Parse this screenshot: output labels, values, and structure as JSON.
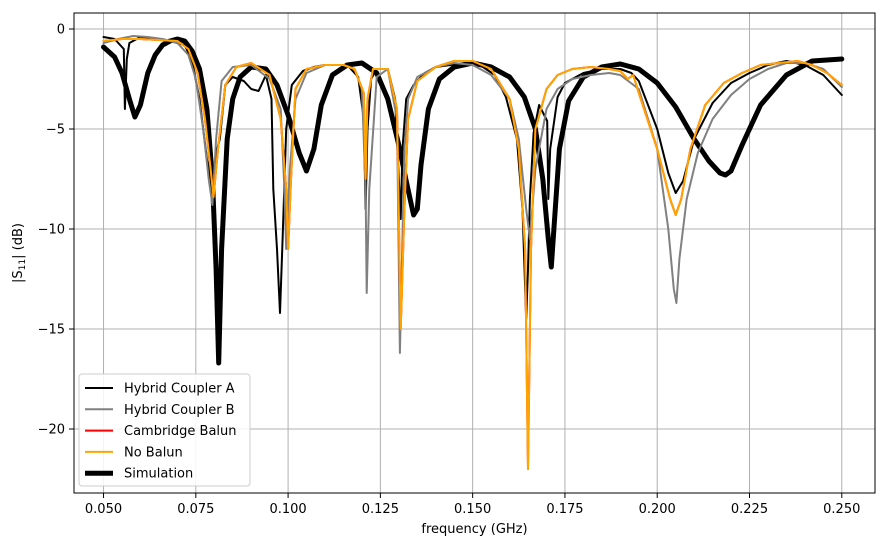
{
  "chart_data": {
    "type": "line",
    "xlabel": "frequency (GHz)",
    "ylabel": "|S",
    "ylabel_sub": "11",
    "ylabel_suffix": "| (dB)",
    "xlim": [
      0.042,
      0.259
    ],
    "ylim": [
      -23.2,
      0.8
    ],
    "xticks": [
      0.05,
      0.075,
      0.1,
      0.125,
      0.15,
      0.175,
      0.2,
      0.225,
      0.25
    ],
    "xtick_labels": [
      "0.050",
      "0.075",
      "0.100",
      "0.125",
      "0.150",
      "0.175",
      "0.200",
      "0.225",
      "0.250"
    ],
    "yticks": [
      0,
      -5,
      -10,
      -15,
      -20
    ],
    "ytick_labels": [
      "0",
      "−5",
      "−10",
      "−15",
      "−20"
    ],
    "grid": true,
    "legend_position": "lower-left",
    "series": [
      {
        "name": "Hybrid Coupler A",
        "color": "#000000",
        "width": 2,
        "x": [
          0.05,
          0.053,
          0.0555,
          0.0558,
          0.0563,
          0.057,
          0.06,
          0.064,
          0.068,
          0.072,
          0.074,
          0.076,
          0.078,
          0.0795,
          0.0805,
          0.0815,
          0.083,
          0.085,
          0.088,
          0.09,
          0.092,
          0.094,
          0.0955,
          0.096,
          0.097,
          0.0978,
          0.0985,
          0.0995,
          0.101,
          0.104,
          0.107,
          0.11,
          0.113,
          0.116,
          0.119,
          0.1205,
          0.121,
          0.1215,
          0.1225,
          0.124,
          0.127,
          0.129,
          0.1305,
          0.131,
          0.132,
          0.134,
          0.137,
          0.14,
          0.144,
          0.148,
          0.152,
          0.156,
          0.159,
          0.162,
          0.1635,
          0.1645,
          0.165,
          0.1655,
          0.1665,
          0.168,
          0.1702,
          0.1705,
          0.171,
          0.173,
          0.175,
          0.18,
          0.185,
          0.19,
          0.193,
          0.195,
          0.2,
          0.203,
          0.205,
          0.207,
          0.21,
          0.215,
          0.22,
          0.225,
          0.23,
          0.235,
          0.24,
          0.245,
          0.25
        ],
        "y": [
          -0.4,
          -0.5,
          -1.0,
          -4.0,
          -1.5,
          -0.7,
          -0.4,
          -0.5,
          -0.6,
          -0.8,
          -1.6,
          -3.5,
          -6.5,
          -8.0,
          -6.2,
          -5.5,
          -2.8,
          -2.4,
          -2.6,
          -3.0,
          -3.1,
          -2.3,
          -3.5,
          -8.0,
          -11.0,
          -14.2,
          -10.5,
          -5.0,
          -2.8,
          -2.1,
          -1.9,
          -1.8,
          -1.8,
          -1.8,
          -2.4,
          -4.5,
          -9.0,
          -5.0,
          -2.5,
          -2.0,
          -2.0,
          -3.5,
          -9.5,
          -6.0,
          -3.5,
          -2.8,
          -2.2,
          -1.9,
          -1.8,
          -1.7,
          -1.8,
          -2.3,
          -3.4,
          -5.5,
          -9.0,
          -14.5,
          -12.0,
          -8.5,
          -5.2,
          -3.8,
          -4.6,
          -8.5,
          -6.0,
          -3.4,
          -2.7,
          -2.2,
          -2.0,
          -2.0,
          -2.2,
          -2.6,
          -5.0,
          -7.2,
          -8.2,
          -7.6,
          -5.5,
          -3.7,
          -2.7,
          -2.2,
          -1.8,
          -1.6,
          -1.8,
          -2.3,
          -3.3
        ]
      },
      {
        "name": "Hybrid Coupler B",
        "color": "#808080",
        "width": 2,
        "x": [
          0.05,
          0.054,
          0.058,
          0.062,
          0.066,
          0.07,
          0.073,
          0.075,
          0.077,
          0.0785,
          0.0795,
          0.0805,
          0.082,
          0.085,
          0.09,
          0.095,
          0.098,
          0.099,
          0.0995,
          0.1005,
          0.102,
          0.105,
          0.11,
          0.115,
          0.118,
          0.12,
          0.121,
          0.1213,
          0.122,
          0.124,
          0.127,
          0.1295,
          0.1303,
          0.1308,
          0.1315,
          0.1325,
          0.135,
          0.14,
          0.145,
          0.15,
          0.155,
          0.16,
          0.1625,
          0.1645,
          0.1655,
          0.167,
          0.17,
          0.173,
          0.177,
          0.182,
          0.187,
          0.19,
          0.195,
          0.2,
          0.203,
          0.2045,
          0.2052,
          0.206,
          0.208,
          0.211,
          0.215,
          0.22,
          0.225,
          0.23,
          0.235,
          0.24,
          0.245,
          0.25
        ],
        "y": [
          -0.7,
          -0.5,
          -0.35,
          -0.4,
          -0.5,
          -0.7,
          -1.3,
          -2.5,
          -5.0,
          -7.5,
          -8.8,
          -5.5,
          -2.6,
          -1.9,
          -1.8,
          -2.5,
          -4.0,
          -8.0,
          -11.0,
          -7.0,
          -3.5,
          -2.2,
          -1.8,
          -1.8,
          -2.0,
          -3.0,
          -8.0,
          -13.2,
          -8.0,
          -2.4,
          -2.0,
          -4.5,
          -16.2,
          -12.0,
          -6.0,
          -3.5,
          -2.4,
          -1.9,
          -1.7,
          -1.8,
          -2.3,
          -3.5,
          -5.5,
          -9.0,
          -10.5,
          -7.0,
          -4.0,
          -3.0,
          -2.5,
          -2.3,
          -2.2,
          -2.3,
          -3.0,
          -6.0,
          -10.0,
          -13.0,
          -13.7,
          -11.5,
          -8.5,
          -6.2,
          -4.5,
          -3.3,
          -2.5,
          -2.0,
          -1.7,
          -1.7,
          -2.0,
          -2.9
        ]
      },
      {
        "name": "Cambridge Balun",
        "color": "#ff0000",
        "width": 2,
        "x": [
          0.05,
          0.055,
          0.06,
          0.065,
          0.07,
          0.073,
          0.0755,
          0.0775,
          0.079,
          0.0798,
          0.081,
          0.083,
          0.086,
          0.09,
          0.095,
          0.098,
          0.0995,
          0.1,
          0.1008,
          0.102,
          0.105,
          0.11,
          0.115,
          0.118,
          0.1205,
          0.121,
          0.1215,
          0.123,
          0.127,
          0.1295,
          0.1305,
          0.1315,
          0.1325,
          0.135,
          0.14,
          0.145,
          0.15,
          0.155,
          0.16,
          0.1625,
          0.1642,
          0.165,
          0.1658,
          0.167,
          0.17,
          0.173,
          0.177,
          0.182,
          0.187,
          0.19,
          0.192,
          0.1935,
          0.195,
          0.2,
          0.2035,
          0.205,
          0.2065,
          0.209,
          0.213,
          0.218,
          0.223,
          0.228,
          0.233,
          0.238,
          0.242,
          0.246,
          0.25
        ],
        "y": [
          -0.6,
          -0.5,
          -0.5,
          -0.55,
          -0.6,
          -1.0,
          -2.2,
          -4.5,
          -7.0,
          -8.4,
          -6.0,
          -2.8,
          -1.9,
          -1.7,
          -2.3,
          -4.5,
          -8.0,
          -11.0,
          -7.5,
          -3.0,
          -2.0,
          -1.8,
          -1.8,
          -2.0,
          -3.2,
          -7.5,
          -3.5,
          -2.0,
          -2.0,
          -4.0,
          -15.0,
          -9.0,
          -4.5,
          -2.6,
          -1.9,
          -1.6,
          -1.6,
          -2.0,
          -3.5,
          -6.0,
          -11.0,
          -22.0,
          -11.0,
          -5.0,
          -3.0,
          -2.3,
          -2.0,
          -1.9,
          -2.0,
          -2.1,
          -2.5,
          -2.3,
          -3.2,
          -6.0,
          -8.5,
          -9.3,
          -8.5,
          -6.0,
          -3.8,
          -2.7,
          -2.2,
          -1.8,
          -1.7,
          -1.6,
          -1.8,
          -2.2,
          -2.8
        ]
      },
      {
        "name": "No Balun",
        "color": "#ffa500",
        "width": 2,
        "x": [
          0.05,
          0.055,
          0.06,
          0.065,
          0.07,
          0.073,
          0.0755,
          0.0775,
          0.079,
          0.0798,
          0.081,
          0.083,
          0.086,
          0.09,
          0.095,
          0.098,
          0.0995,
          0.1,
          0.1008,
          0.102,
          0.105,
          0.11,
          0.115,
          0.118,
          0.1205,
          0.121,
          0.1215,
          0.123,
          0.127,
          0.1295,
          0.1305,
          0.1315,
          0.1325,
          0.135,
          0.14,
          0.145,
          0.15,
          0.155,
          0.16,
          0.1625,
          0.1642,
          0.165,
          0.1658,
          0.167,
          0.17,
          0.173,
          0.177,
          0.182,
          0.187,
          0.19,
          0.192,
          0.1935,
          0.195,
          0.2,
          0.2035,
          0.205,
          0.2065,
          0.209,
          0.213,
          0.218,
          0.223,
          0.228,
          0.233,
          0.238,
          0.242,
          0.246,
          0.25
        ],
        "y": [
          -0.6,
          -0.5,
          -0.5,
          -0.55,
          -0.6,
          -1.0,
          -2.2,
          -4.5,
          -7.0,
          -8.4,
          -6.0,
          -2.8,
          -1.9,
          -1.7,
          -2.3,
          -4.5,
          -8.0,
          -11.0,
          -7.5,
          -3.0,
          -2.0,
          -1.8,
          -1.8,
          -2.0,
          -3.2,
          -7.5,
          -3.5,
          -2.0,
          -2.0,
          -4.0,
          -15.0,
          -9.0,
          -4.5,
          -2.6,
          -1.9,
          -1.6,
          -1.6,
          -2.0,
          -3.5,
          -6.0,
          -11.0,
          -22.0,
          -11.0,
          -5.0,
          -3.0,
          -2.3,
          -2.0,
          -1.9,
          -2.0,
          -2.1,
          -2.5,
          -2.3,
          -3.2,
          -6.0,
          -8.5,
          -9.3,
          -8.5,
          -6.0,
          -3.8,
          -2.7,
          -2.2,
          -1.8,
          -1.7,
          -1.6,
          -1.8,
          -2.2,
          -2.8
        ]
      },
      {
        "name": "Simulation",
        "color": "#000000",
        "width": 5,
        "x": [
          0.05,
          0.053,
          0.055,
          0.057,
          0.0585,
          0.06,
          0.062,
          0.064,
          0.066,
          0.068,
          0.07,
          0.072,
          0.074,
          0.076,
          0.078,
          0.0795,
          0.0805,
          0.0812,
          0.082,
          0.0835,
          0.085,
          0.087,
          0.09,
          0.094,
          0.097,
          0.1,
          0.103,
          0.105,
          0.107,
          0.109,
          0.112,
          0.116,
          0.12,
          0.124,
          0.127,
          0.13,
          0.132,
          0.134,
          0.135,
          0.136,
          0.138,
          0.141,
          0.145,
          0.15,
          0.155,
          0.16,
          0.164,
          0.167,
          0.169,
          0.1705,
          0.1713,
          0.172,
          0.1735,
          0.176,
          0.18,
          0.185,
          0.19,
          0.195,
          0.2,
          0.205,
          0.21,
          0.214,
          0.217,
          0.2185,
          0.22,
          0.223,
          0.228,
          0.235,
          0.242,
          0.25
        ],
        "y": [
          -0.9,
          -1.4,
          -2.2,
          -3.5,
          -4.4,
          -3.8,
          -2.2,
          -1.3,
          -0.8,
          -0.6,
          -0.5,
          -0.6,
          -1.1,
          -2.0,
          -4.0,
          -7.5,
          -12.0,
          -16.7,
          -11.0,
          -5.5,
          -3.5,
          -2.4,
          -1.9,
          -2.0,
          -2.8,
          -4.3,
          -6.2,
          -7.1,
          -6.0,
          -3.8,
          -2.3,
          -1.8,
          -1.7,
          -2.2,
          -3.5,
          -5.8,
          -7.6,
          -9.3,
          -9.0,
          -6.8,
          -4.0,
          -2.5,
          -1.9,
          -1.7,
          -1.9,
          -2.4,
          -3.4,
          -5.0,
          -7.5,
          -10.5,
          -11.9,
          -10.0,
          -6.0,
          -3.6,
          -2.4,
          -1.9,
          -1.75,
          -2.0,
          -2.7,
          -3.9,
          -5.5,
          -6.6,
          -7.2,
          -7.3,
          -7.1,
          -5.8,
          -3.8,
          -2.3,
          -1.6,
          -1.5
        ]
      }
    ],
    "draw_order": [
      4,
      0,
      1,
      2,
      3
    ]
  }
}
